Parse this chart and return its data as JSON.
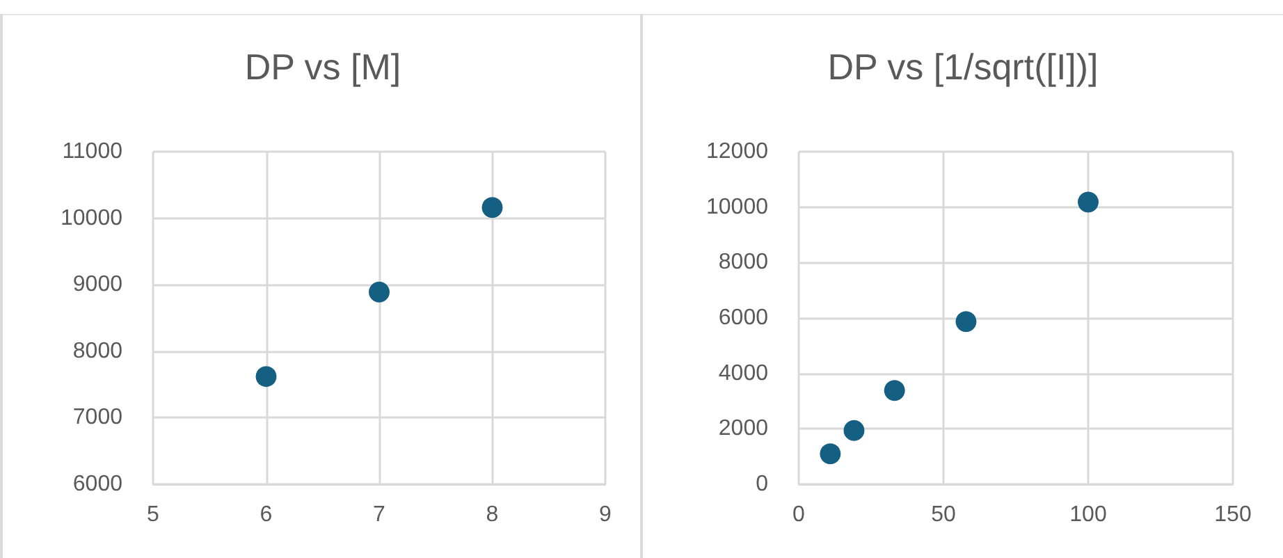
{
  "chart_data": [
    {
      "type": "scatter",
      "title": "DP vs [M]",
      "x": [
        6,
        7,
        8
      ],
      "values": [
        7620,
        8890,
        10160
      ],
      "color": "#155f82",
      "marker": "circle",
      "grid": true,
      "xlim": [
        5,
        9
      ],
      "xticks": [
        5,
        6,
        7,
        8,
        9
      ],
      "ylim": [
        6000,
        11000
      ],
      "yticks": [
        6000,
        7000,
        8000,
        9000,
        10000,
        11000
      ]
    },
    {
      "type": "scatter",
      "title": "DP vs [1/sqrt([I])]",
      "x": [
        10.9,
        19.1,
        33.1,
        57.8,
        100
      ],
      "values": [
        1100,
        1940,
        3380,
        5870,
        10180
      ],
      "color": "#155f82",
      "marker": "circle",
      "grid": true,
      "xlim": [
        0,
        150
      ],
      "xticks": [
        0,
        50,
        100,
        150
      ],
      "ylim": [
        0,
        12000
      ],
      "yticks": [
        0,
        2000,
        4000,
        6000,
        8000,
        10000,
        12000
      ]
    }
  ]
}
